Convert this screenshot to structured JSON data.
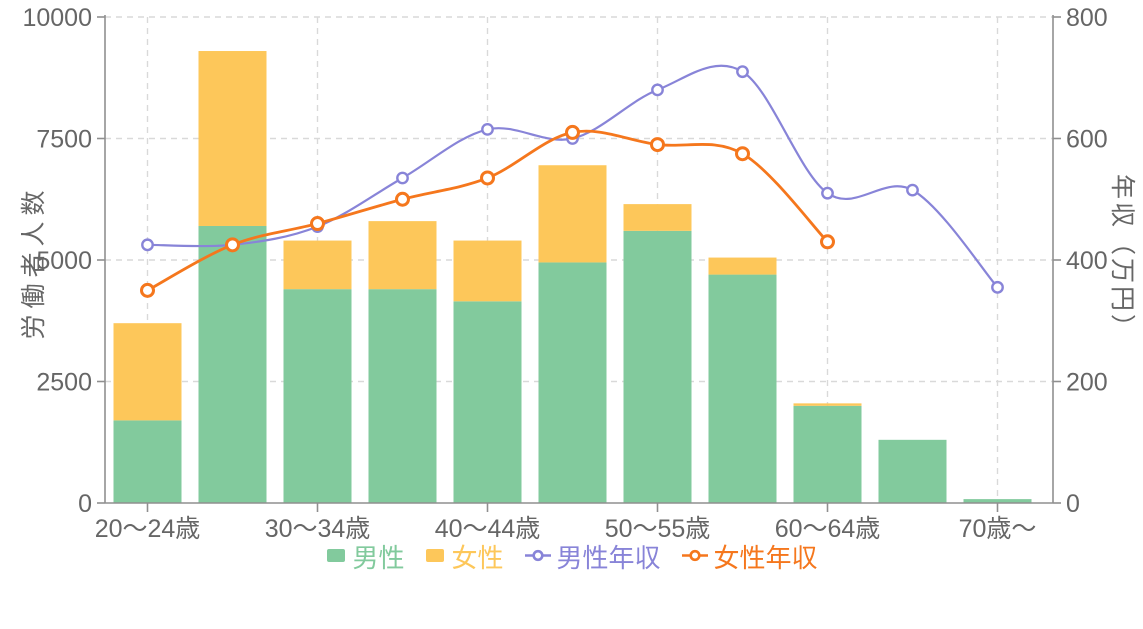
{
  "chart_data": {
    "type": "bar",
    "variant": "stacked bars (left axis) combined with two smoothed lines (right axis)",
    "title": "",
    "categories": [
      "20〜24歳",
      "",
      "30〜34歳",
      "",
      "40〜44歳",
      "",
      "50〜55歳",
      "",
      "60〜64歳",
      "",
      "70歳〜"
    ],
    "bar_series": [
      {
        "id": "male",
        "name": "男性",
        "color": "#82ca9d",
        "axis": "left",
        "stack": "workers",
        "values": [
          1700,
          5700,
          4400,
          4400,
          4150,
          4950,
          5600,
          4700,
          2000,
          1300,
          80
        ]
      },
      {
        "id": "female",
        "name": "女性",
        "color": "#fdc75a",
        "axis": "left",
        "stack": "workers",
        "values": [
          2000,
          3600,
          1000,
          1400,
          1250,
          2000,
          550,
          350,
          50,
          0,
          0
        ]
      }
    ],
    "line_series": [
      {
        "id": "male-income",
        "name": "男性年収",
        "color": "#8884d8",
        "axis": "right",
        "values": [
          425,
          425,
          455,
          535,
          615,
          600,
          680,
          710,
          510,
          515,
          355
        ]
      },
      {
        "id": "female-income",
        "name": "女性年収",
        "color": "#f5771d",
        "axis": "right",
        "values": [
          350,
          425,
          460,
          500,
          535,
          610,
          590,
          575,
          430,
          null,
          null
        ]
      }
    ],
    "left_axis": {
      "label": "労働者人数",
      "min": 0,
      "max": 10000,
      "ticks": [
        0,
        2500,
        5000,
        7500,
        10000
      ]
    },
    "right_axis": {
      "label": "年収（万円）",
      "min": 0,
      "max": 800,
      "ticks": [
        0,
        200,
        400,
        600,
        800
      ]
    },
    "x_axis": {
      "labeled_tick_indices": [
        0,
        2,
        4,
        6,
        8,
        10
      ]
    },
    "legend": {
      "position": "bottom",
      "entries": [
        "男性",
        "女性",
        "男性年収",
        "女性年収"
      ]
    },
    "grid": {
      "style": "dashed",
      "horizontal": true,
      "vertical_at_labeled_categories": true
    },
    "colors": {
      "grid": "#d9d9d9",
      "axis_line": "#8f8f8f",
      "tick_text": "#666666",
      "marker_fill": "#ffffff",
      "background": "#ffffff"
    }
  }
}
